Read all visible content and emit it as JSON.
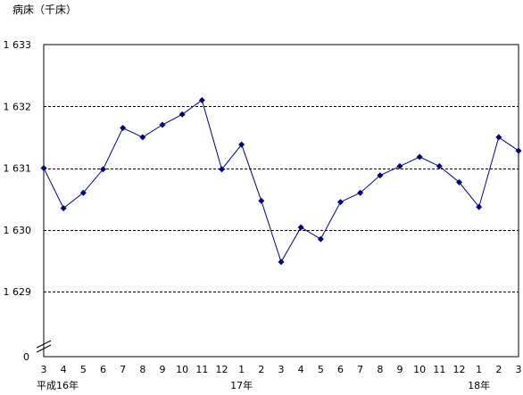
{
  "chart_data": {
    "type": "line",
    "title": "",
    "ylabel": "病床（千床）",
    "xlabel": "",
    "ylim": [
      1629,
      1633
    ],
    "y_ticks": [
      "1 633",
      "1 632",
      "1 631",
      "1 630",
      "1 629"
    ],
    "y_tick_values": [
      1633,
      1632,
      1631,
      1630,
      1629
    ],
    "y_zero_label": "0",
    "axis_break": true,
    "grid": "horizontal dashed",
    "categories": [
      "3",
      "4",
      "5",
      "6",
      "7",
      "8",
      "9",
      "10",
      "11",
      "12",
      "1",
      "2",
      "3",
      "4",
      "5",
      "6",
      "7",
      "8",
      "9",
      "10",
      "11",
      "12",
      "1",
      "2",
      "3"
    ],
    "year_labels": [
      {
        "category_index": 0,
        "text": "平成16年"
      },
      {
        "category_index": 10,
        "text": "17年"
      },
      {
        "category_index": 22,
        "text": "18年"
      }
    ],
    "series": [
      {
        "color": "#000080",
        "values": [
          1631.0,
          1630.35,
          1630.6,
          1630.98,
          1631.65,
          1631.5,
          1631.7,
          1631.87,
          1632.1,
          1630.98,
          1631.38,
          1630.47,
          1629.48,
          1630.04,
          1629.85,
          1630.45,
          1630.6,
          1630.88,
          1631.03,
          1631.18,
          1631.03,
          1630.77,
          1630.37,
          1631.5,
          1631.28
        ]
      }
    ]
  }
}
